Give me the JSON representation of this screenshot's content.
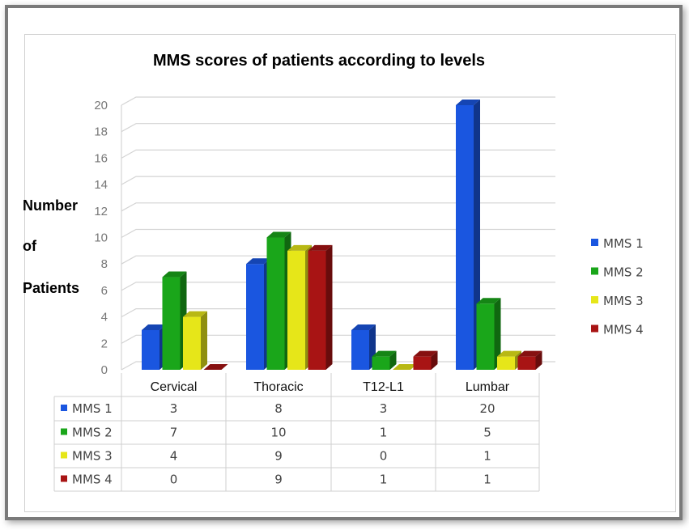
{
  "chart_data": {
    "type": "bar",
    "title": "MMS scores of patients according to levels",
    "ylabel": [
      "Number",
      "of",
      "Patients"
    ],
    "xlabel": "",
    "categories": [
      "Cervical",
      "Thoracic",
      "T12-L1",
      "Lumbar"
    ],
    "series": [
      {
        "name": "MMS 1",
        "values": [
          3,
          8,
          3,
          20
        ],
        "color": "#1a56e0"
      },
      {
        "name": "MMS 2",
        "values": [
          7,
          10,
          1,
          5
        ],
        "color": "#1aa61a"
      },
      {
        "name": "MMS 3",
        "values": [
          4,
          9,
          0,
          1
        ],
        "color": "#e6e619"
      },
      {
        "name": "MMS 4",
        "values": [
          0,
          9,
          1,
          1
        ],
        "color": "#a81414"
      }
    ],
    "yticks": [
      "0",
      "2",
      "4",
      "6",
      "8",
      "10",
      "12",
      "14",
      "16",
      "18",
      "20"
    ],
    "ylim": [
      0,
      20
    ],
    "grid": true,
    "legend": "right",
    "data_table": true
  }
}
